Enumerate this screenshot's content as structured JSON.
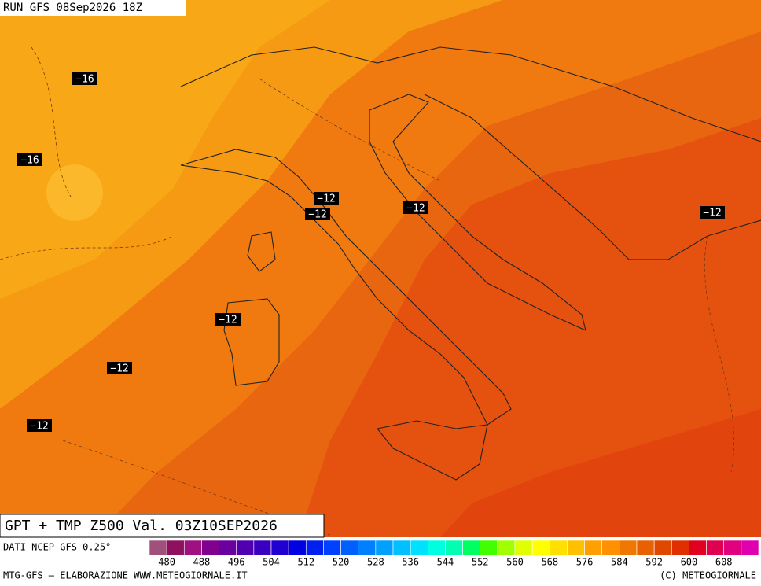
{
  "header": {
    "run": "RUN GFS 08Sep2026 18Z"
  },
  "map": {
    "contour_labels": [
      "−16",
      "−16",
      "−12",
      "−12",
      "−12",
      "−12",
      "−12",
      "−12",
      "−12"
    ]
  },
  "title": "GPT + TMP Z500 Val. 03Z10SEP2026",
  "source": "DATI NCEP GFS 0.25°",
  "colorbar": {
    "ticks": [
      480,
      488,
      496,
      504,
      512,
      520,
      528,
      536,
      544,
      552,
      560,
      568,
      576,
      584,
      592,
      600,
      608
    ],
    "colors": [
      "#a0507a",
      "#901060",
      "#a01080",
      "#800090",
      "#6a00a0",
      "#5000b0",
      "#3a00c0",
      "#2000d0",
      "#0000e0",
      "#0020f0",
      "#0040ff",
      "#0060ff",
      "#0080ff",
      "#00a0ff",
      "#00c0ff",
      "#00e0ff",
      "#00ffe0",
      "#00ffb0",
      "#00ff60",
      "#40ff00",
      "#a0ff00",
      "#e0ff00",
      "#ffff00",
      "#ffe000",
      "#ffc000",
      "#ffa000",
      "#ff9000",
      "#f07800",
      "#e86000",
      "#e04800",
      "#e03000",
      "#e00020",
      "#e00050",
      "#e00080",
      "#e000b0"
    ]
  },
  "footer": {
    "left": "MTG-GFS — ELABORAZIONE WWW.METEOGIORNALE.IT",
    "right": "(C) METEOGIORNALE"
  }
}
